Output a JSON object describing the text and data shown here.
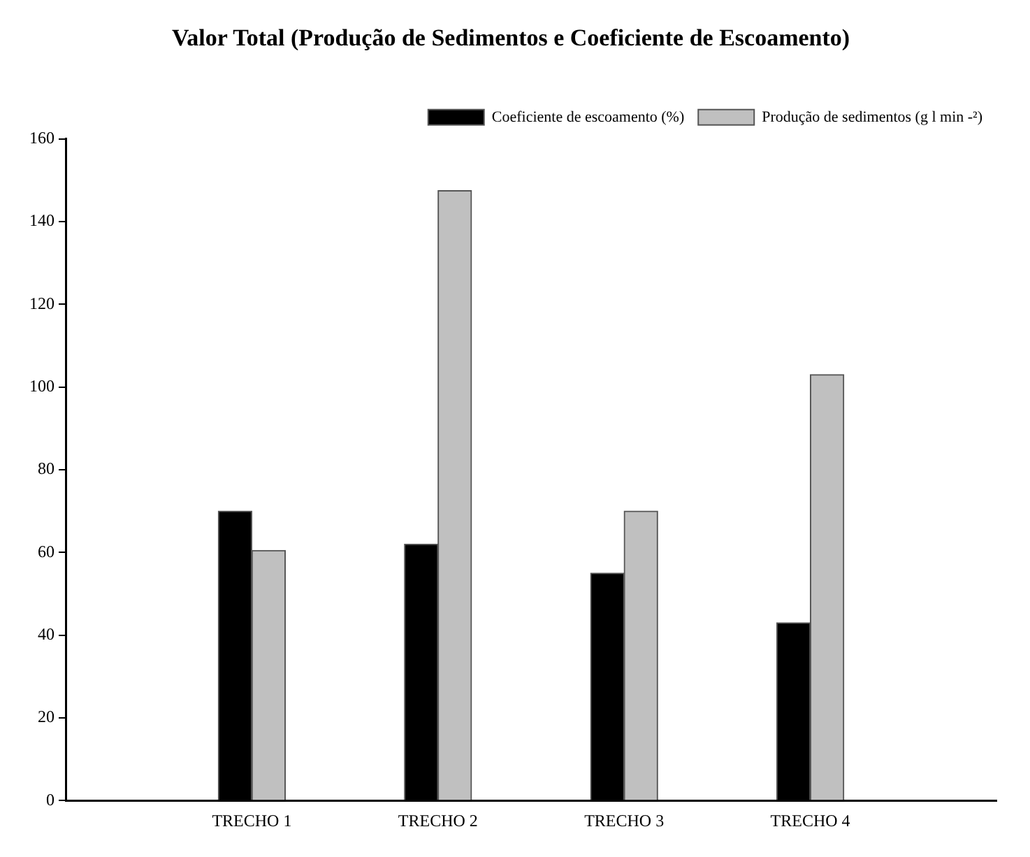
{
  "chart_data": {
    "type": "bar",
    "title": "Valor Total (Produção de Sedimentos e Coeficiente de Escoamento)",
    "categories": [
      "TRECHO 1",
      "TRECHO 2",
      "TRECHO 3",
      "TRECHO 4"
    ],
    "series": [
      {
        "name": "Coeficiente de escoamento (%)",
        "color": "#000000",
        "values": [
          70,
          62,
          55,
          43
        ]
      },
      {
        "name": "Produção de sedimentos (g l min -²)",
        "color": "#c0c0c0",
        "values": [
          60.5,
          147.5,
          70,
          103
        ]
      }
    ],
    "ylim": [
      0,
      160
    ],
    "yticks": [
      0,
      20,
      40,
      60,
      80,
      100,
      120,
      140,
      160
    ],
    "grid": false,
    "legend": "top right"
  }
}
